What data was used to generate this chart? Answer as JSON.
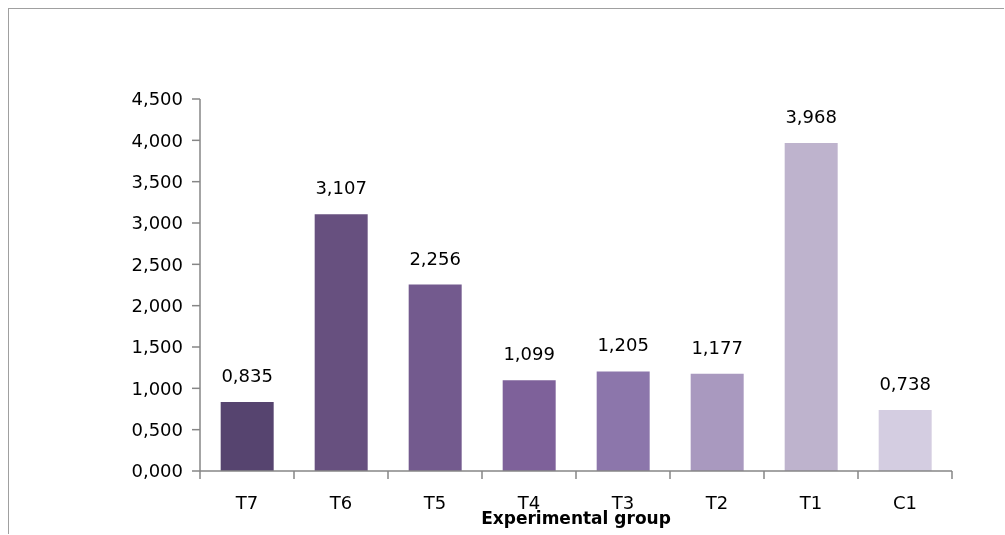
{
  "chart_data": {
    "type": "bar",
    "xlabel": "Experimental group",
    "categories": [
      "T7",
      "T6",
      "T5",
      "T4",
      "T3",
      "T2",
      "T1",
      "C1"
    ],
    "values": [
      0.835,
      3.107,
      2.256,
      1.099,
      1.205,
      1.177,
      3.968,
      0.738
    ],
    "colors": [
      "#56446f",
      "#67507f",
      "#735a8e",
      "#7e619a",
      "#8c76ab",
      "#a999bf",
      "#beb3cd",
      "#d4cde1"
    ],
    "value_labels": [
      "0,835",
      "3,107",
      "2,256",
      "1,099",
      "1,205",
      "1,177",
      "3,968",
      "0,738"
    ],
    "ylim": [
      0,
      4.5
    ],
    "yticks": [
      {
        "value": 0,
        "label": "0,000"
      },
      {
        "value": 0.5,
        "label": "0,500"
      },
      {
        "value": 1,
        "label": "1,000"
      },
      {
        "value": 1.5,
        "label": "1,500"
      },
      {
        "value": 2,
        "label": "2,000"
      },
      {
        "value": 2.5,
        "label": "2,500"
      },
      {
        "value": 3,
        "label": "3,000"
      },
      {
        "value": 3.5,
        "label": "3,500"
      },
      {
        "value": 4,
        "label": "4,000"
      },
      {
        "value": 4.5,
        "label": "4,500"
      }
    ]
  }
}
